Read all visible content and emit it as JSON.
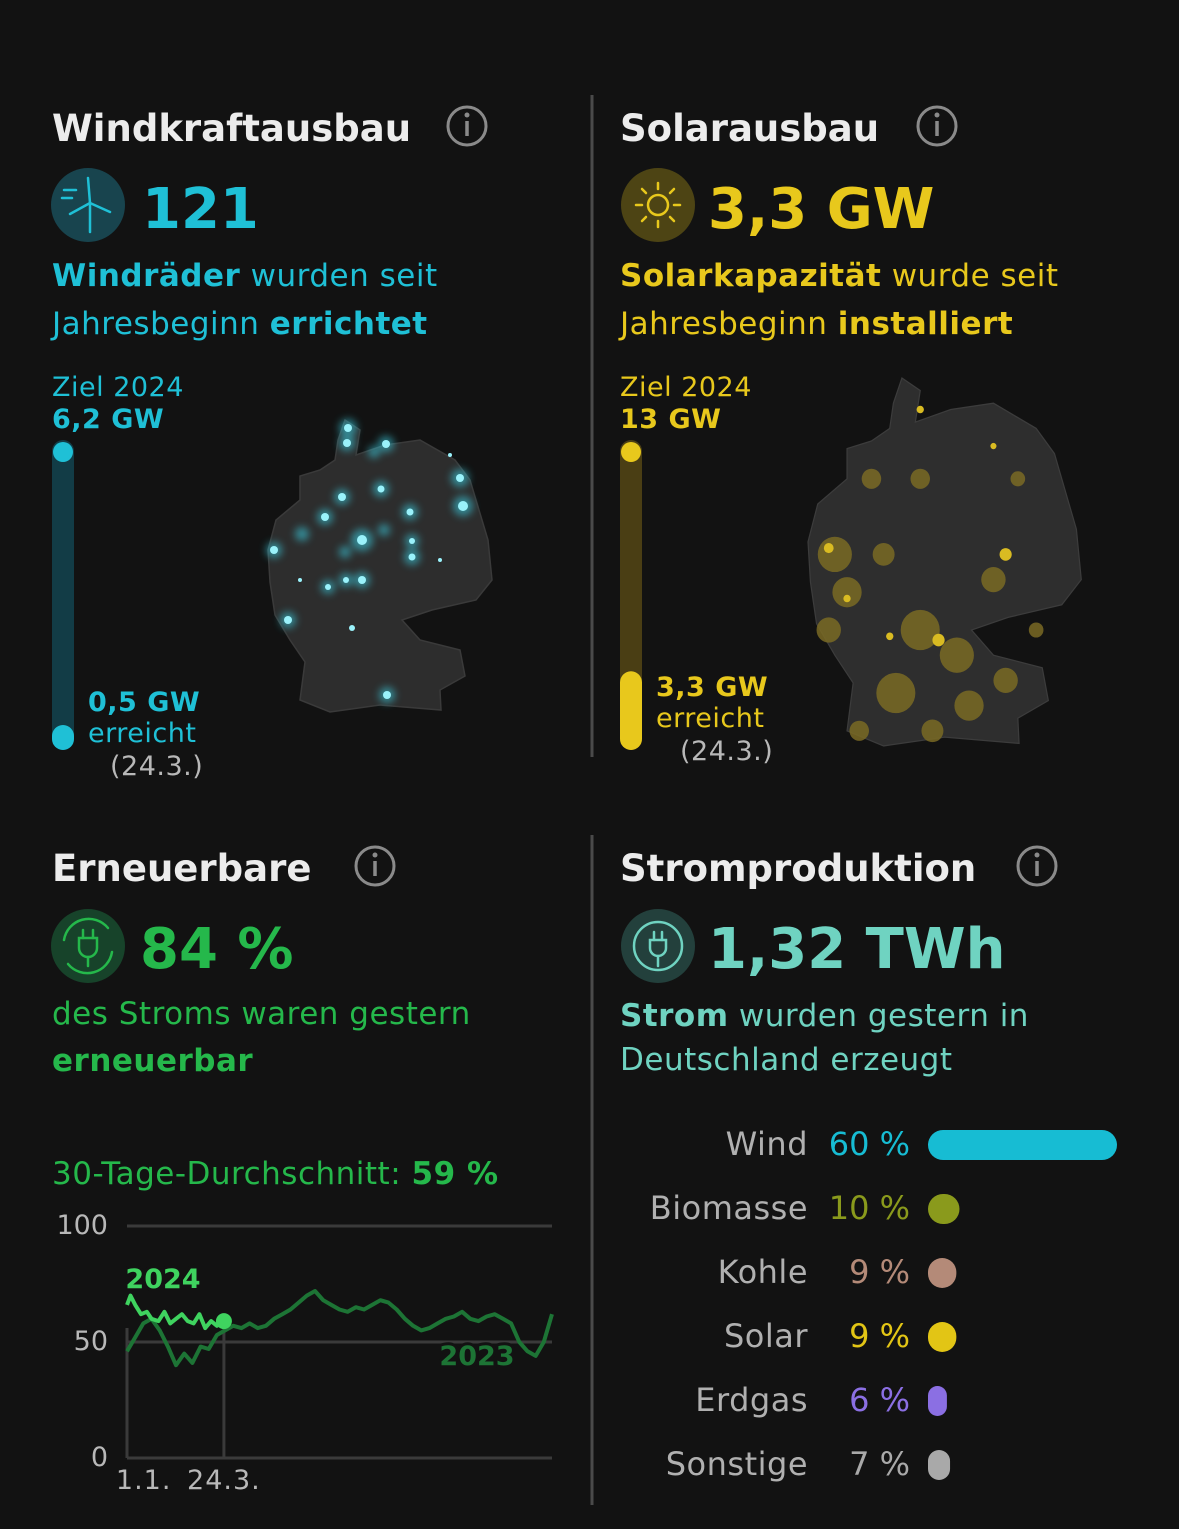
{
  "wind": {
    "title": "Windkraftausbau",
    "value": "121",
    "text": [
      "Windräder",
      "wurden seit",
      "Jahresbeginn",
      "errichtet"
    ],
    "goal_label": "Ziel 2024",
    "goal": {
      "value": 6.2,
      "label": "6,2 GW"
    },
    "reached": {
      "value": 0.5,
      "label": "0,5 GW"
    },
    "reached_label": "erreicht",
    "date": "(24.3.)"
  },
  "solar": {
    "title": "Solarausbau",
    "value": "3,3 GW",
    "text": [
      "Solarkapazität",
      "wurde seit",
      "Jahresbeginn",
      "installiert"
    ],
    "goal_label": "Ziel 2024",
    "goal": {
      "value": 13,
      "label": "13 GW"
    },
    "reached": {
      "value": 3.3,
      "label": "3,3 GW"
    },
    "reached_label": "erreicht",
    "date": "(24.3.)"
  },
  "renewables": {
    "title": "Erneuerbare",
    "value": "84 %",
    "text": [
      "des Stroms waren gestern",
      "erneuerbar"
    ],
    "average_label": "30-Tage-Durchschnitt:",
    "average": "59 %",
    "chart": {
      "type": "line",
      "xlim": [
        1,
        365
      ],
      "xticks": [
        {
          "value": 1,
          "label": "1.1."
        },
        {
          "value": 84,
          "label": "24.3."
        }
      ],
      "ylim": [
        0,
        100
      ],
      "yticks": [
        0,
        50,
        100
      ],
      "grid": true,
      "series": [
        {
          "name": "2024",
          "color": "#3fd35f",
          "x": [
            1,
            4,
            8,
            13,
            18,
            22,
            28,
            33,
            38,
            43,
            48,
            53,
            58,
            63,
            68,
            73,
            78,
            84
          ],
          "values": [
            66,
            70,
            66,
            62,
            63,
            60,
            59,
            63,
            58,
            60,
            62,
            59,
            58,
            62,
            56,
            59,
            57,
            59
          ]
        },
        {
          "name": "2023",
          "color": "#1d7435",
          "x": [
            1,
            8,
            15,
            22,
            29,
            36,
            43,
            50,
            57,
            64,
            71,
            78,
            85,
            92,
            99,
            106,
            113,
            120,
            127,
            134,
            141,
            148,
            155,
            162,
            169,
            176,
            183,
            190,
            197,
            204,
            211,
            218,
            225,
            232,
            239,
            246,
            253,
            260,
            267,
            274,
            281,
            288,
            295,
            302,
            309,
            316,
            323,
            330,
            337,
            344,
            351,
            358,
            365
          ],
          "values": [
            46,
            52,
            58,
            60,
            55,
            48,
            40,
            45,
            41,
            48,
            47,
            53,
            55,
            57,
            56,
            58,
            56,
            57,
            60,
            62,
            64,
            67,
            70,
            72,
            68,
            66,
            64,
            63,
            65,
            64,
            66,
            68,
            67,
            64,
            60,
            57,
            55,
            56,
            58,
            60,
            61,
            63,
            60,
            59,
            61,
            62,
            60,
            58,
            50,
            46,
            44,
            50,
            62
          ]
        }
      ]
    }
  },
  "production": {
    "title": "Stromproduktion",
    "value": "1,32 TWh",
    "text": [
      "Strom",
      "wurden gestern in",
      "Deutschland erzeugt"
    ],
    "chart": {
      "type": "bar",
      "categories": [
        "Wind",
        "Biomasse",
        "Kohle",
        "Solar",
        "Erdgas",
        "Sonstige"
      ],
      "values": [
        60,
        10,
        9,
        9,
        6,
        7
      ],
      "value_labels": [
        "60 %",
        "10 %",
        "9 %",
        "9 %",
        "6 %",
        "7 %"
      ],
      "colors": [
        "#17bcd3",
        "#8a9a1c",
        "#b48a78",
        "#e2c515",
        "#8b6fe3",
        "#a9a9a9"
      ]
    }
  }
}
